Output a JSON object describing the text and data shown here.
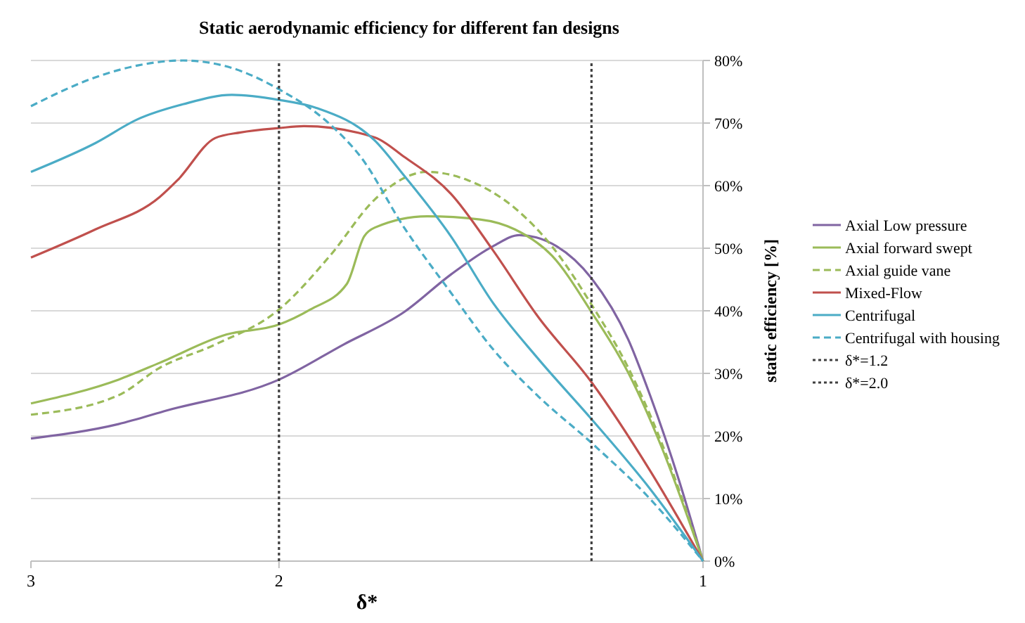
{
  "chart_data": {
    "type": "line",
    "title": "Static aerodynamic efficiency for different fan designs",
    "xlabel": "δ*",
    "ylabel": "static efficiency [%]",
    "log": "x",
    "xlim": [
      3,
      1
    ],
    "xticks": [
      3,
      2,
      1
    ],
    "ylim": [
      0,
      80
    ],
    "yticks": [
      {
        "value": 0,
        "label": "0%"
      },
      {
        "value": 10,
        "label": "10%"
      },
      {
        "value": 20,
        "label": "20%"
      },
      {
        "value": 30,
        "label": "30%"
      },
      {
        "value": 40,
        "label": "40%"
      },
      {
        "value": 50,
        "label": "50%"
      },
      {
        "value": 60,
        "label": "60%"
      },
      {
        "value": 70,
        "label": "70%"
      },
      {
        "value": 80,
        "label": "80%"
      }
    ],
    "grid": "y",
    "legend": "right",
    "series": [
      {
        "name": "Axial Low pressure",
        "color": "#8064a2",
        "line_style": "solid",
        "x": [
          3,
          2.6,
          2.4,
          2,
          1.8,
          1.63,
          1.51,
          1.41,
          1.35,
          1.27,
          1.2,
          1.13,
          1.09,
          1.04,
          1
        ],
        "values": [
          19.6,
          21.9,
          24.1,
          29,
          34.6,
          39.8,
          45.8,
          50.3,
          52.1,
          50.3,
          45.2,
          35.4,
          26.4,
          12.9,
          0
        ]
      },
      {
        "name": "Axial forward swept",
        "color": "#9bbb59",
        "line_style": "solid",
        "x": [
          3,
          2.6,
          2.43,
          2.18,
          2,
          1.9,
          1.79,
          1.74,
          1.71,
          1.57,
          1.44,
          1.36,
          1.28,
          1.2,
          1.13,
          1.07,
          1
        ],
        "values": [
          25.2,
          29,
          31.7,
          36.2,
          37.8,
          40.2,
          44.3,
          51.9,
          53.3,
          55.1,
          54.6,
          53,
          48.8,
          39.8,
          30.1,
          18.2,
          0
        ]
      },
      {
        "name": "Axial guide vane",
        "color": "#9bbb59",
        "line_style": "dashed",
        "x": [
          3,
          2.6,
          2.43,
          2.22,
          2,
          1.84,
          1.71,
          1.68,
          1.57,
          1.47,
          1.36,
          1.28,
          1.2,
          1.13,
          1.07,
          1
        ],
        "values": [
          23.4,
          26.5,
          30.9,
          34.6,
          40.2,
          48.8,
          57.8,
          59.3,
          62.2,
          60.9,
          56.4,
          50.3,
          41,
          30.9,
          18.9,
          0
        ]
      },
      {
        "name": "Mixed-Flow",
        "color": "#c0504d",
        "line_style": "solid",
        "x": [
          3,
          2.7,
          2.43,
          2.36,
          2.22,
          2.13,
          2,
          1.92,
          1.71,
          1.63,
          1.51,
          1.41,
          1.31,
          1.2,
          1.09,
          1
        ],
        "values": [
          48.5,
          53,
          58.2,
          60.9,
          67.6,
          68.5,
          69.2,
          69.5,
          67.7,
          64.6,
          58.7,
          49.7,
          39.1,
          28.6,
          14.4,
          0
        ]
      },
      {
        "name": "Centrifugal",
        "color": "#4bacc6",
        "line_style": "solid",
        "x": [
          3,
          2.7,
          2.52,
          2.34,
          2.16,
          2,
          1.88,
          1.71,
          1.63,
          1.51,
          1.41,
          1.31,
          1.2,
          1.09,
          1
        ],
        "values": [
          62.2,
          66.8,
          70.6,
          73,
          74.5,
          73.7,
          72.4,
          67.2,
          61.6,
          51.9,
          41.3,
          32.4,
          22.7,
          11.5,
          0
        ]
      },
      {
        "name": "Centrifugal with housing",
        "color": "#4bacc6",
        "line_style": "dashed",
        "x": [
          3,
          2.7,
          2.52,
          2.34,
          2.16,
          2,
          1.84,
          1.75,
          1.63,
          1.51,
          1.41,
          1.31,
          1.2,
          1.09,
          1
        ],
        "values": [
          72.7,
          77.3,
          79.2,
          80,
          78.8,
          75.4,
          69.8,
          64.6,
          53.3,
          42.9,
          33.9,
          26.4,
          18.9,
          9.9,
          0
        ]
      },
      {
        "name": "δ*=1.2",
        "color": "#404040",
        "line_style": "dotted",
        "x": [
          1.2,
          1.2
        ],
        "values": [
          0,
          80
        ]
      },
      {
        "name": "δ*=2.0",
        "color": "#404040",
        "line_style": "dotted",
        "x": [
          2,
          2
        ],
        "values": [
          0,
          80
        ]
      }
    ]
  }
}
